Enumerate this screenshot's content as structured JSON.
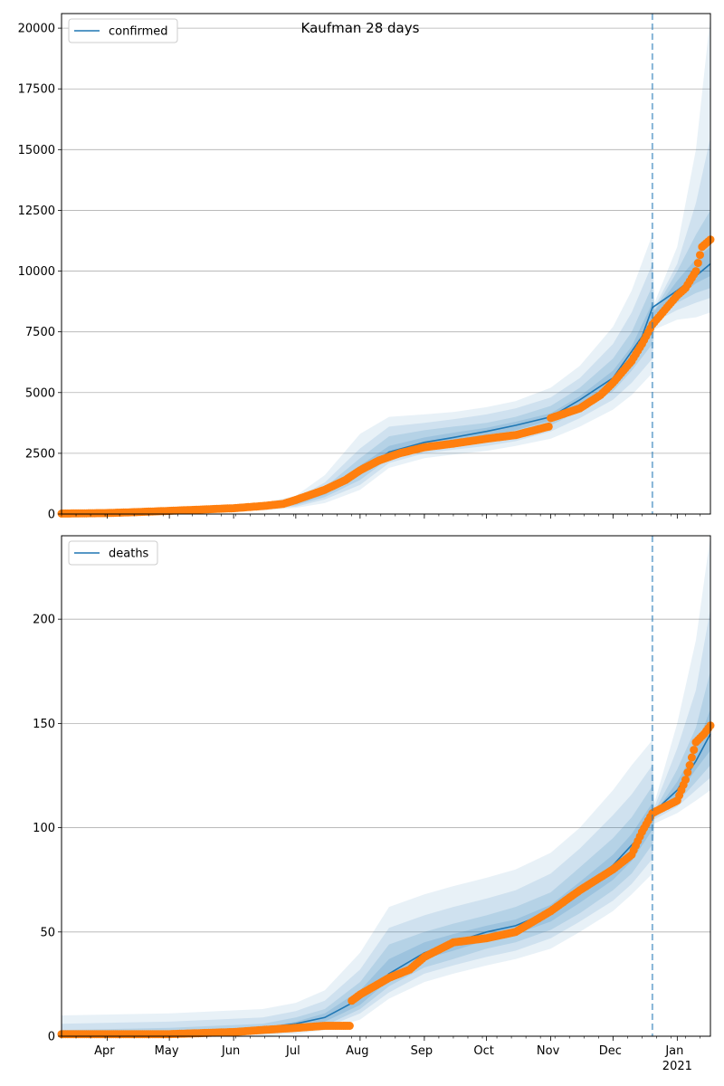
{
  "figure": {
    "title": "Kaufman 28 days"
  },
  "chart_data": [
    {
      "type": "line",
      "series": [
        {
          "name": "confirmed",
          "color": "#1f77b4",
          "x": [
            "2020-03-10",
            "2020-04-01",
            "2020-04-15",
            "2020-05-01",
            "2020-05-15",
            "2020-06-01",
            "2020-06-15",
            "2020-07-01",
            "2020-07-15",
            "2020-08-01",
            "2020-08-15",
            "2020-09-01",
            "2020-09-15",
            "2020-10-01",
            "2020-10-15",
            "2020-11-01",
            "2020-11-15",
            "2020-12-01",
            "2020-12-15",
            "2020-12-20",
            "2021-01-01",
            "2021-01-10",
            "2021-01-17"
          ],
          "values": [
            0,
            30,
            70,
            120,
            170,
            230,
            300,
            450,
            900,
            1700,
            2550,
            2950,
            3150,
            3400,
            3650,
            4000,
            4700,
            5600,
            7300,
            8500,
            9200,
            9800,
            10300
          ]
        }
      ],
      "band_x": [
        "2020-03-10",
        "2020-05-01",
        "2020-06-15",
        "2020-07-01",
        "2020-07-15",
        "2020-08-01",
        "2020-08-15",
        "2020-09-01",
        "2020-09-15",
        "2020-10-01",
        "2020-10-15",
        "2020-11-01",
        "2020-11-15",
        "2020-12-01",
        "2020-12-10",
        "2020-12-20",
        "2020-12-21",
        "2021-01-01",
        "2021-01-10",
        "2021-01-17"
      ],
      "bands": [
        {
          "label": "outer",
          "low": [
            0,
            50,
            150,
            250,
            450,
            1000,
            1900,
            2300,
            2450,
            2600,
            2800,
            3100,
            3600,
            4300,
            4900,
            5800,
            7600,
            8000,
            8100,
            8300
          ],
          "high": [
            50,
            250,
            450,
            750,
            1600,
            3300,
            4000,
            4100,
            4200,
            4400,
            4650,
            5200,
            6100,
            7700,
            9200,
            11500,
            8700,
            11000,
            15000,
            20500
          ]
        },
        {
          "label": "middle",
          "low": [
            0,
            70,
            200,
            300,
            600,
            1200,
            2100,
            2500,
            2650,
            2800,
            3000,
            3400,
            3950,
            4700,
            5400,
            6400,
            7900,
            8400,
            8700,
            8900
          ],
          "high": [
            30,
            190,
            380,
            650,
            1300,
            2700,
            3600,
            3750,
            3900,
            4100,
            4350,
            4800,
            5600,
            7000,
            8300,
            10300,
            8500,
            10300,
            12800,
            15500
          ]
        },
        {
          "label": "inner",
          "low": [
            0,
            90,
            240,
            360,
            700,
            1400,
            2300,
            2700,
            2900,
            3050,
            3250,
            3650,
            4250,
            5050,
            5900,
            7000,
            8100,
            8700,
            9100,
            9300
          ],
          "high": [
            10,
            150,
            330,
            550,
            1100,
            2300,
            3200,
            3450,
            3600,
            3750,
            4000,
            4450,
            5200,
            6400,
            7500,
            9400,
            8400,
            10000,
            11500,
            12500
          ]
        },
        {
          "label": "center",
          "low": [
            0,
            110,
            270,
            400,
            800,
            1600,
            2500,
            2850,
            3050,
            3200,
            3450,
            3850,
            4450,
            5300,
            6200,
            7500,
            8200,
            8900,
            9500,
            9800
          ],
          "high": [
            5,
            130,
            300,
            500,
            1000,
            2000,
            2800,
            3150,
            3350,
            3550,
            3800,
            4150,
            4850,
            5900,
            6900,
            8700,
            8350,
            9600,
            10500,
            11000
          ]
        }
      ],
      "observed": {
        "color": "#ff7f0e",
        "x": [
          "2020-03-10",
          "2020-04-01",
          "2020-04-15",
          "2020-05-01",
          "2020-05-15",
          "2020-06-01",
          "2020-06-15",
          "2020-06-25",
          "2020-07-01",
          "2020-07-15",
          "2020-07-25",
          "2020-08-01",
          "2020-08-10",
          "2020-08-20",
          "2020-09-01",
          "2020-09-15",
          "2020-10-01",
          "2020-10-15",
          "2020-10-31",
          "2020-11-01",
          "2020-11-15",
          "2020-11-25",
          "2020-12-01",
          "2020-12-10",
          "2020-12-15",
          "2020-12-20",
          "2021-01-01",
          "2021-01-05",
          "2021-01-10",
          "2021-01-13",
          "2021-01-17"
        ],
        "values": [
          20,
          40,
          80,
          130,
          180,
          240,
          330,
          420,
          580,
          1000,
          1400,
          1800,
          2200,
          2500,
          2750,
          2900,
          3100,
          3250,
          3600,
          3950,
          4350,
          4900,
          5400,
          6300,
          7000,
          7800,
          9000,
          9300,
          10000,
          11000,
          11300
        ]
      },
      "forecast_start": "2020-12-20",
      "ylim": [
        0,
        20600
      ],
      "yticks": [
        "0",
        "2500",
        "5000",
        "7500",
        "10000",
        "12500",
        "15000",
        "17500",
        "20000"
      ],
      "xlim": [
        "2020-03-10",
        "2021-01-17"
      ],
      "grid": "y",
      "legend_position": "top-left"
    },
    {
      "type": "line",
      "series": [
        {
          "name": "deaths",
          "color": "#1f77b4",
          "x": [
            "2020-03-10",
            "2020-04-15",
            "2020-05-01",
            "2020-06-01",
            "2020-06-15",
            "2020-07-01",
            "2020-07-15",
            "2020-08-01",
            "2020-08-15",
            "2020-09-01",
            "2020-09-15",
            "2020-10-01",
            "2020-10-15",
            "2020-11-01",
            "2020-11-15",
            "2020-12-01",
            "2020-12-15",
            "2020-12-20",
            "2021-01-01",
            "2021-01-10",
            "2021-01-17"
          ],
          "values": [
            0,
            1,
            2,
            3,
            4,
            6,
            9,
            18,
            30,
            40,
            45,
            50,
            53,
            60,
            70,
            82,
            97,
            107,
            118,
            132,
            145
          ]
        }
      ],
      "band_x": [
        "2020-03-10",
        "2020-05-01",
        "2020-06-15",
        "2020-07-01",
        "2020-07-15",
        "2020-08-01",
        "2020-08-15",
        "2020-09-01",
        "2020-09-15",
        "2020-10-01",
        "2020-10-15",
        "2020-11-01",
        "2020-11-15",
        "2020-12-01",
        "2020-12-10",
        "2020-12-20",
        "2020-12-21",
        "2021-01-01",
        "2021-01-10",
        "2021-01-17"
      ],
      "bands": [
        {
          "label": "outer",
          "low": [
            0,
            0,
            0,
            1,
            3,
            8,
            18,
            26,
            30,
            34,
            37,
            42,
            50,
            60,
            68,
            78,
            102,
            107,
            113,
            118
          ],
          "high": [
            10,
            11,
            13,
            16,
            22,
            40,
            62,
            68,
            72,
            76,
            80,
            88,
            100,
            118,
            130,
            142,
            112,
            150,
            190,
            240
          ]
        },
        {
          "label": "middle",
          "low": [
            0,
            0,
            1,
            2,
            4,
            11,
            21,
            30,
            34,
            38,
            41,
            47,
            55,
            65,
            73,
            85,
            104,
            110,
            118,
            124
          ],
          "high": [
            6,
            7,
            9,
            12,
            17,
            32,
            52,
            58,
            62,
            66,
            70,
            78,
            90,
            106,
            116,
            130,
            110,
            138,
            166,
            205
          ]
        },
        {
          "label": "inner",
          "low": [
            0,
            0,
            1,
            3,
            5,
            13,
            24,
            33,
            37,
            42,
            45,
            51,
            59,
            70,
            78,
            92,
            105,
            112,
            122,
            130
          ],
          "high": [
            3,
            4,
            6,
            9,
            13,
            26,
            44,
            50,
            54,
            58,
            62,
            69,
            81,
            95,
            105,
            120,
            108,
            128,
            148,
            175
          ]
        },
        {
          "label": "center",
          "low": [
            0,
            1,
            2,
            4,
            7,
            15,
            27,
            37,
            41,
            46,
            49,
            55,
            64,
            75,
            84,
            99,
            106,
            115,
            128,
            137
          ],
          "high": [
            1,
            2,
            4,
            7,
            11,
            22,
            37,
            45,
            49,
            53,
            56,
            63,
            74,
            87,
            97,
            112,
            107,
            122,
            138,
            157
          ]
        }
      ],
      "observed": {
        "color": "#ff7f0e",
        "x": [
          "2020-03-10",
          "2020-04-15",
          "2020-05-01",
          "2020-06-01",
          "2020-06-15",
          "2020-07-01",
          "2020-07-15",
          "2020-07-27",
          "2020-07-28",
          "2020-08-01",
          "2020-08-15",
          "2020-08-25",
          "2020-09-01",
          "2020-09-15",
          "2020-10-01",
          "2020-10-15",
          "2020-11-01",
          "2020-11-15",
          "2020-12-01",
          "2020-12-10",
          "2020-12-15",
          "2020-12-20",
          "2021-01-01",
          "2021-01-05",
          "2021-01-07",
          "2021-01-10",
          "2021-01-14",
          "2021-01-17"
        ],
        "values": [
          1,
          1,
          1,
          2,
          3,
          4,
          5,
          5,
          17,
          20,
          28,
          32,
          38,
          45,
          47,
          50,
          60,
          70,
          80,
          87,
          98,
          107,
          113,
          123,
          130,
          141,
          145,
          149
        ]
      },
      "forecast_start": "2020-12-20",
      "ylim": [
        0,
        240
      ],
      "yticks": [
        "0",
        "50",
        "100",
        "150",
        "200"
      ],
      "xlim": [
        "2020-03-10",
        "2021-01-17"
      ],
      "grid": "y",
      "legend_position": "top-left"
    }
  ],
  "x_axis": {
    "month_labels": [
      "Apr",
      "May",
      "Jun",
      "Jul",
      "Aug",
      "Sep",
      "Oct",
      "Nov",
      "Dec",
      "Jan"
    ],
    "month_dates": [
      "2020-04-01",
      "2020-05-01",
      "2020-06-01",
      "2020-07-01",
      "2020-08-01",
      "2020-09-01",
      "2020-10-01",
      "2020-11-01",
      "2020-12-01",
      "2021-01-01"
    ],
    "year_label": "2021"
  }
}
